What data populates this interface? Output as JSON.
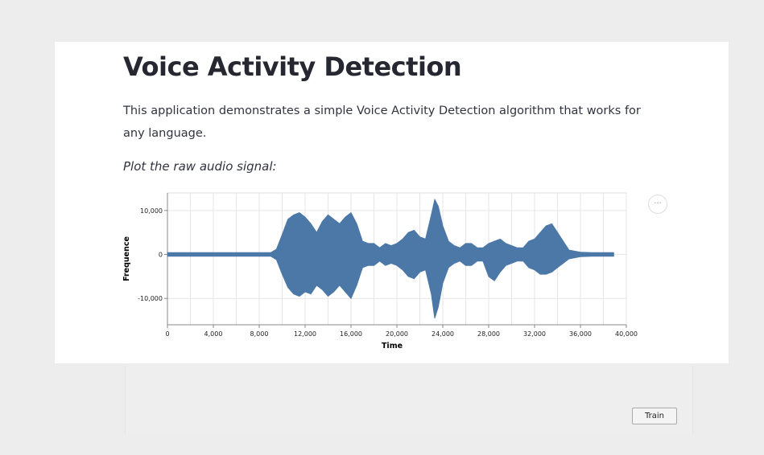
{
  "page": {
    "title": "Voice Activity Detection",
    "description": "This application demonstrates a simple Voice Activity Detection algorithm that works for any language.",
    "subheading": "Plot the raw audio signal:",
    "actions_glyph": "···"
  },
  "train_button": {
    "label": "Train"
  },
  "colors": {
    "signal": "#4c78a8",
    "grid": "#e6e6e6",
    "axis": "#888888"
  },
  "chart_data": {
    "type": "area",
    "title": "",
    "xlabel": "Time",
    "ylabel": "Frequence",
    "xlim": [
      0,
      40000
    ],
    "ylim": [
      -16000,
      14000
    ],
    "x_ticks": [
      0,
      4000,
      8000,
      12000,
      16000,
      20000,
      24000,
      28000,
      32000,
      36000,
      40000
    ],
    "x_tick_labels": [
      "0",
      "4,000",
      "8,000",
      "12,000",
      "16,000",
      "20,000",
      "24,000",
      "28,000",
      "32,000",
      "36,000",
      "40,000"
    ],
    "y_ticks": [
      10000,
      0,
      -10000
    ],
    "y_tick_labels": [
      "10,000",
      "0",
      "-10,000"
    ],
    "grid": true,
    "series": [
      {
        "x": [
          0,
          9000,
          9500,
          10000,
          10500,
          11000,
          11500,
          12000,
          12500,
          13000,
          13500,
          14000,
          14500,
          15000,
          15500,
          16000,
          16500,
          17000,
          17500,
          18000,
          18500,
          19000,
          19500,
          20000,
          20500,
          21000,
          21500,
          22000,
          22500,
          23000,
          23300,
          23600,
          24000,
          24500,
          25000,
          25500,
          26000,
          26500,
          27000,
          27500,
          28000,
          28500,
          29000,
          29500,
          30000,
          30500,
          31000,
          31500,
          32000,
          32500,
          33000,
          33500,
          34000,
          35000,
          36000,
          37000,
          38000,
          38900
        ],
        "upper": [
          400,
          400,
          1200,
          4500,
          8000,
          9000,
          9500,
          8500,
          7000,
          5000,
          7500,
          9000,
          8000,
          7000,
          8500,
          9500,
          7000,
          3000,
          2500,
          2500,
          1500,
          2500,
          2000,
          2500,
          3500,
          5000,
          5500,
          4000,
          3500,
          9000,
          12500,
          11000,
          6500,
          3000,
          2000,
          1500,
          2500,
          2500,
          1500,
          1500,
          2500,
          3000,
          3500,
          2500,
          2000,
          1500,
          1500,
          3000,
          3500,
          5000,
          6500,
          7000,
          5000,
          1000,
          500,
          400,
          400,
          400
        ],
        "lower": [
          -400,
          -400,
          -1200,
          -4500,
          -7500,
          -9000,
          -9500,
          -8500,
          -9000,
          -7000,
          -8000,
          -9500,
          -8500,
          -7000,
          -8500,
          -10000,
          -7000,
          -3000,
          -2500,
          -2500,
          -1500,
          -2500,
          -2000,
          -2500,
          -3500,
          -5000,
          -5500,
          -4000,
          -3500,
          -9000,
          -14500,
          -12000,
          -6500,
          -3000,
          -2000,
          -1500,
          -2500,
          -2500,
          -1500,
          -1500,
          -5000,
          -6000,
          -4000,
          -2500,
          -2000,
          -1500,
          -1500,
          -3000,
          -3500,
          -4500,
          -4500,
          -4000,
          -3000,
          -1000,
          -500,
          -400,
          -400,
          -400
        ]
      }
    ]
  }
}
